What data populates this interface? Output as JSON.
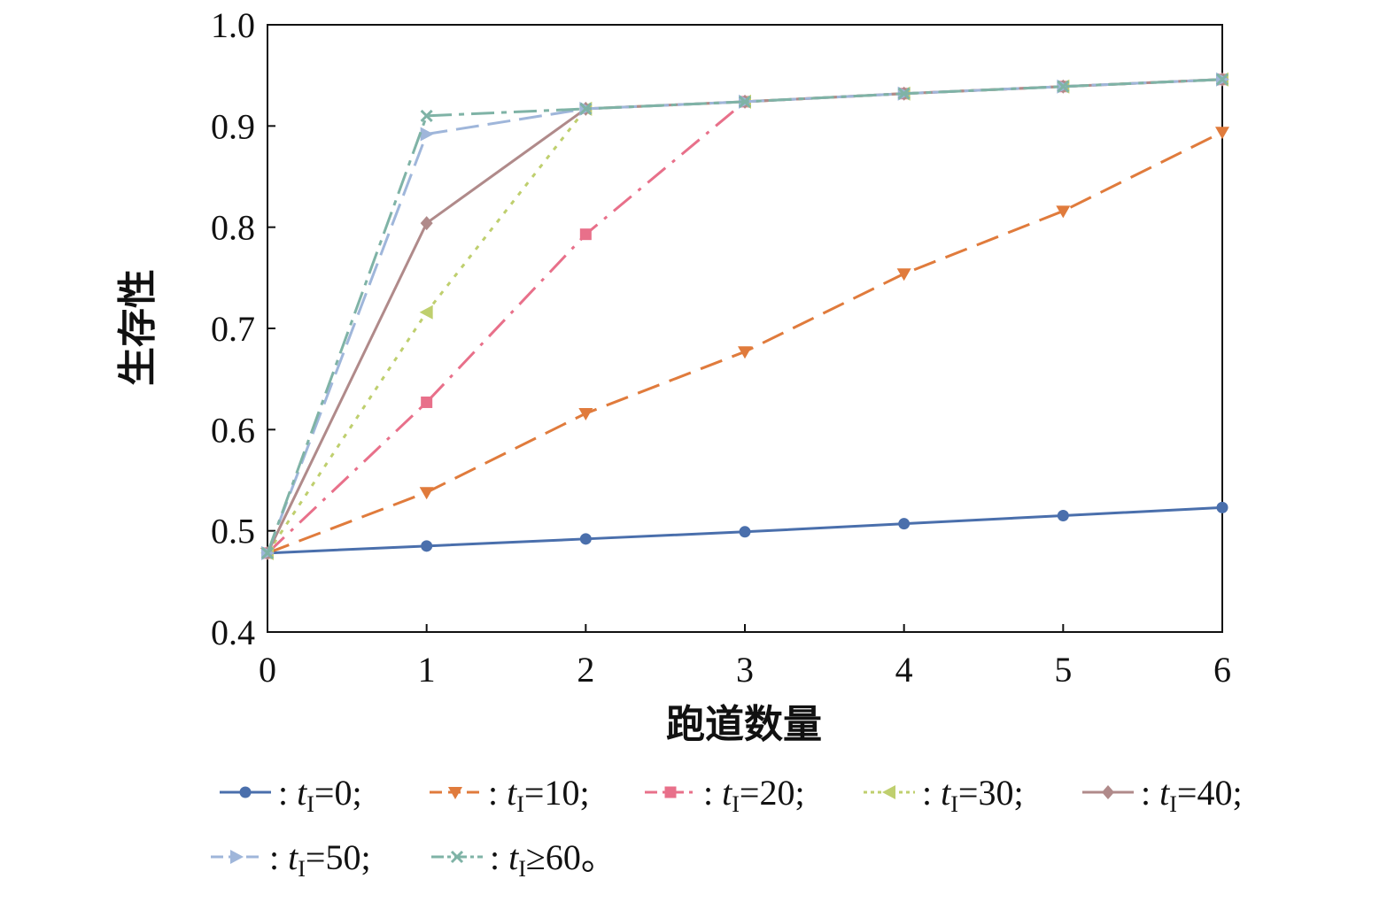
{
  "chart_data": {
    "type": "line",
    "title": "",
    "xlabel": "跑道数量",
    "ylabel": "生存性",
    "xlim": [
      0,
      6
    ],
    "ylim": [
      0.4,
      1.0
    ],
    "x": [
      0,
      1,
      2,
      3,
      4,
      5,
      6
    ],
    "x_ticks": [
      "0",
      "1",
      "2",
      "3",
      "4",
      "5",
      "6"
    ],
    "y_ticks": [
      "0.4",
      "0.5",
      "0.6",
      "0.7",
      "0.8",
      "0.9",
      "1.0"
    ],
    "grid": false,
    "legend_position": "bottom",
    "series": [
      {
        "name": ": tI=0;",
        "legend_prefix": ": ",
        "legend_var": "t",
        "legend_sub": "I",
        "legend_rest": "=0;",
        "color": "#4a6fac",
        "marker": "circle",
        "dash": "",
        "values": [
          0.478,
          0.485,
          0.492,
          0.499,
          0.507,
          0.515,
          0.523
        ]
      },
      {
        "name": ": tI=10;",
        "legend_prefix": ": ",
        "legend_var": "t",
        "legend_sub": "I",
        "legend_rest": "=10;",
        "color": "#e07b3c",
        "marker": "triangle-down",
        "dash": "26,12",
        "values": [
          0.478,
          0.538,
          0.616,
          0.677,
          0.754,
          0.816,
          0.894
        ]
      },
      {
        "name": ": tI=20;",
        "legend_prefix": ": ",
        "legend_var": "t",
        "legend_sub": "I",
        "legend_rest": "=20;",
        "color": "#e8708a",
        "marker": "square",
        "dash": "26,10,4,10",
        "values": [
          0.478,
          0.627,
          0.793,
          0.924,
          0.932,
          0.939,
          0.946
        ]
      },
      {
        "name": ": tI=30;",
        "legend_prefix": ": ",
        "legend_var": "t",
        "legend_sub": "I",
        "legend_rest": "=30;",
        "color": "#bfcf6e",
        "marker": "triangle-left",
        "dash": "5,8",
        "values": [
          0.478,
          0.716,
          0.917,
          0.924,
          0.932,
          0.939,
          0.946
        ]
      },
      {
        "name": ": tI=40;",
        "legend_prefix": ": ",
        "legend_var": "t",
        "legend_sub": "I",
        "legend_rest": "=40;",
        "color": "#b08a8a",
        "marker": "diamond",
        "dash": "",
        "values": [
          0.478,
          0.804,
          0.917,
          0.924,
          0.932,
          0.939,
          0.946
        ]
      },
      {
        "name": ": tI=50;",
        "legend_prefix": ": ",
        "legend_var": "t",
        "legend_sub": "I",
        "legend_rest": "=50;",
        "color": "#9fb6da",
        "marker": "triangle-right",
        "dash": "26,10",
        "values": [
          0.478,
          0.892,
          0.917,
          0.924,
          0.932,
          0.939,
          0.946
        ]
      },
      {
        "name": ": tI≥60。",
        "legend_prefix": ": ",
        "legend_var": "t",
        "legend_sub": "I",
        "legend_rest": "≥60。",
        "color": "#7fb3a6",
        "marker": "x",
        "dash": "26,8,6,8",
        "values": [
          0.478,
          0.91,
          0.917,
          0.924,
          0.932,
          0.939,
          0.946
        ]
      }
    ]
  }
}
